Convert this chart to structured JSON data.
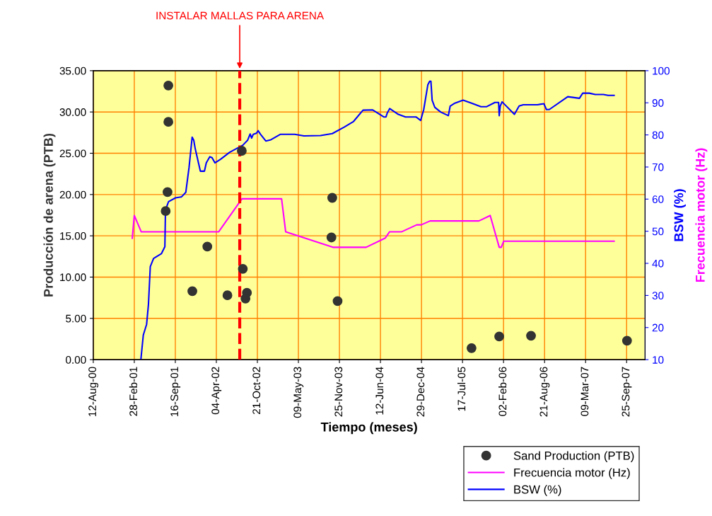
{
  "chart_data": {
    "type": "line",
    "xlabel": "Tiempo (meses)",
    "ylabel": "Producción de arena (PTB)",
    "y2label": "BSW (%)",
    "y3label": "Frecuencia motor (Hz)",
    "xlim": [
      "2000-08-12",
      "2007-12-24"
    ],
    "xticks": [
      {
        "value": "2000-08-12",
        "label": "12-Aug-00"
      },
      {
        "value": "2001-02-28",
        "label": "28-Feb-01"
      },
      {
        "value": "2001-09-16",
        "label": "16-Sep-01"
      },
      {
        "value": "2002-04-04",
        "label": "04-Apr-02"
      },
      {
        "value": "2002-10-21",
        "label": "21-Oct-02"
      },
      {
        "value": "2003-05-09",
        "label": "09-May-03"
      },
      {
        "value": "2003-11-25",
        "label": "25-Nov-03"
      },
      {
        "value": "2004-06-12",
        "label": "12-Jun-04"
      },
      {
        "value": "2004-12-29",
        "label": "29-Dec-04"
      },
      {
        "value": "2005-07-17",
        "label": "17-Jul-05"
      },
      {
        "value": "2006-02-02",
        "label": "02-Feb-06"
      },
      {
        "value": "2006-08-21",
        "label": "21-Aug-06"
      },
      {
        "value": "2007-03-09",
        "label": "09-Mar-07"
      },
      {
        "value": "2007-09-25",
        "label": "25-Sep-07"
      }
    ],
    "ylim": [
      0,
      35
    ],
    "yticks": [
      {
        "value": 0,
        "label": "0.00"
      },
      {
        "value": 5,
        "label": "5.00"
      },
      {
        "value": 10,
        "label": "10.00"
      },
      {
        "value": 15,
        "label": "15.00"
      },
      {
        "value": 20,
        "label": "20.00"
      },
      {
        "value": 25,
        "label": "25.00"
      },
      {
        "value": 30,
        "label": "30.00"
      },
      {
        "value": 35,
        "label": "35.00"
      }
    ],
    "y2lim": [
      10,
      100
    ],
    "y2ticks": [
      10,
      20,
      30,
      40,
      50,
      60,
      70,
      80,
      90,
      100
    ],
    "grid": true,
    "legend": "bottom right",
    "ref_lines": [
      {
        "axis": "x",
        "value": "2002-07-27",
        "label": "INSTALAR MALLAS PARA ARENA",
        "color": "#ff0000",
        "line_style": "dashed"
      }
    ],
    "series": [
      {
        "name": "Sand Production (PTB)",
        "type": "scatter",
        "marker": "circle",
        "color": "#333333",
        "x": [
          "2001-08-13",
          "2001-08-13",
          "2001-08-09",
          "2001-07-31",
          "2002-02-19",
          "2002-08-11",
          "2001-12-08",
          "2002-05-28",
          "2002-08-31",
          "2002-08-24",
          "2002-08-06",
          "2003-10-21",
          "2003-10-17",
          "2003-11-16",
          "2005-08-30",
          "2006-01-12",
          "2006-06-16",
          "2007-09-27"
        ],
        "values": [
          33.2,
          28.8,
          20.3,
          18.0,
          13.7,
          11.0,
          8.3,
          7.8,
          8.1,
          7.4,
          25.3,
          19.6,
          14.8,
          7.1,
          1.4,
          2.8,
          2.9,
          2.3
        ]
      },
      {
        "name": "Frecuencia motor (Hz)",
        "axis": "y2",
        "marker": "none",
        "line_style": "solid",
        "color": "#ff00ff",
        "x": [
          "2001-02-18",
          "2001-02-28",
          "2001-04-03",
          "2002-04-15",
          "2002-07-28",
          "2002-08-07",
          "2003-02-16",
          "2003-03-08",
          "2003-10-24",
          "2004-04-03",
          "2004-07-06",
          "2004-07-26",
          "2004-09-22",
          "2004-12-06",
          "2004-12-28",
          "2005-02-09",
          "2005-10-05",
          "2005-11-29",
          "2006-01-12",
          "2006-01-22",
          "2006-02-03",
          "2007-07-26"
        ],
        "values": [
          47.8,
          54.9,
          49.8,
          49.8,
          59.2,
          60.1,
          60.1,
          49.8,
          45.0,
          45.0,
          47.9,
          49.8,
          49.8,
          52.0,
          52.0,
          53.2,
          53.2,
          54.9,
          45.0,
          45.0,
          46.9,
          46.9
        ]
      },
      {
        "name": "BSW (%)",
        "axis": "y2",
        "marker": "none",
        "line_style": "solid",
        "color": "#0000ff",
        "x": [
          "2001-04-01",
          "2001-04-13",
          "2001-04-29",
          "2001-05-08",
          "2001-05-17",
          "2001-06-02",
          "2001-07-10",
          "2001-07-27",
          "2001-07-30",
          "2001-08-14",
          "2001-09-17",
          "2001-10-16",
          "2001-11-06",
          "2001-11-22",
          "2001-12-07",
          "2001-12-15",
          "2001-12-22",
          "2002-01-16",
          "2002-02-05",
          "2002-02-14",
          "2002-03-03",
          "2002-03-14",
          "2002-03-28",
          "2002-04-24",
          "2002-06-08",
          "2002-08-11",
          "2002-09-03",
          "2002-09-16",
          "2002-09-23",
          "2002-10-01",
          "2002-10-16",
          "2002-10-25",
          "2002-11-05",
          "2002-12-01",
          "2002-12-26",
          "2003-02-11",
          "2003-04-21",
          "2003-06-05",
          "2003-08-25",
          "2003-10-21",
          "2003-12-18",
          "2004-02-02",
          "2004-03-19",
          "2004-05-04",
          "2004-06-28",
          "2004-07-09",
          "2004-07-15",
          "2004-07-27",
          "2004-09-07",
          "2004-10-12",
          "2004-12-02",
          "2004-12-25",
          "2005-01-09",
          "2005-01-29",
          "2005-02-07",
          "2005-02-13",
          "2005-02-19",
          "2005-03-04",
          "2005-04-02",
          "2005-05-09",
          "2005-05-18",
          "2005-06-10",
          "2005-07-20",
          "2005-08-30",
          "2005-10-15",
          "2005-11-12",
          "2005-12-22",
          "2006-01-09",
          "2006-01-12",
          "2006-01-17",
          "2006-01-26",
          "2006-03-27",
          "2006-04-19",
          "2006-05-09",
          "2006-07-17",
          "2006-08-18",
          "2006-08-30",
          "2006-09-13",
          "2006-12-12",
          "2007-02-07",
          "2007-02-23",
          "2007-03-27",
          "2007-04-25",
          "2007-06-04",
          "2007-06-27",
          "2007-07-26"
        ],
        "values": [
          10.0,
          17.7,
          21.0,
          27.2,
          39.0,
          41.5,
          43.0,
          45.2,
          56.6,
          59.2,
          60.4,
          60.7,
          62.1,
          69.9,
          79.3,
          78.3,
          75.7,
          68.7,
          68.7,
          71.3,
          73.2,
          72.9,
          71.3,
          72.4,
          74.6,
          76.8,
          78.3,
          80.3,
          79.0,
          80.2,
          80.5,
          81.3,
          80.2,
          78.1,
          78.5,
          80.2,
          80.2,
          79.7,
          79.8,
          80.4,
          82.4,
          84.2,
          87.7,
          87.8,
          85.6,
          85.6,
          86.8,
          88.2,
          86.4,
          85.6,
          85.6,
          84.5,
          87.9,
          95.6,
          96.7,
          96.7,
          90.8,
          88.6,
          87.1,
          86.0,
          89.0,
          89.9,
          90.8,
          89.9,
          88.8,
          88.8,
          90.1,
          90.1,
          86.0,
          89.0,
          90.3,
          86.4,
          89.0,
          89.4,
          89.4,
          89.7,
          87.9,
          87.9,
          91.9,
          91.4,
          93.0,
          93.0,
          92.6,
          92.6,
          92.3,
          92.3
        ]
      }
    ]
  }
}
